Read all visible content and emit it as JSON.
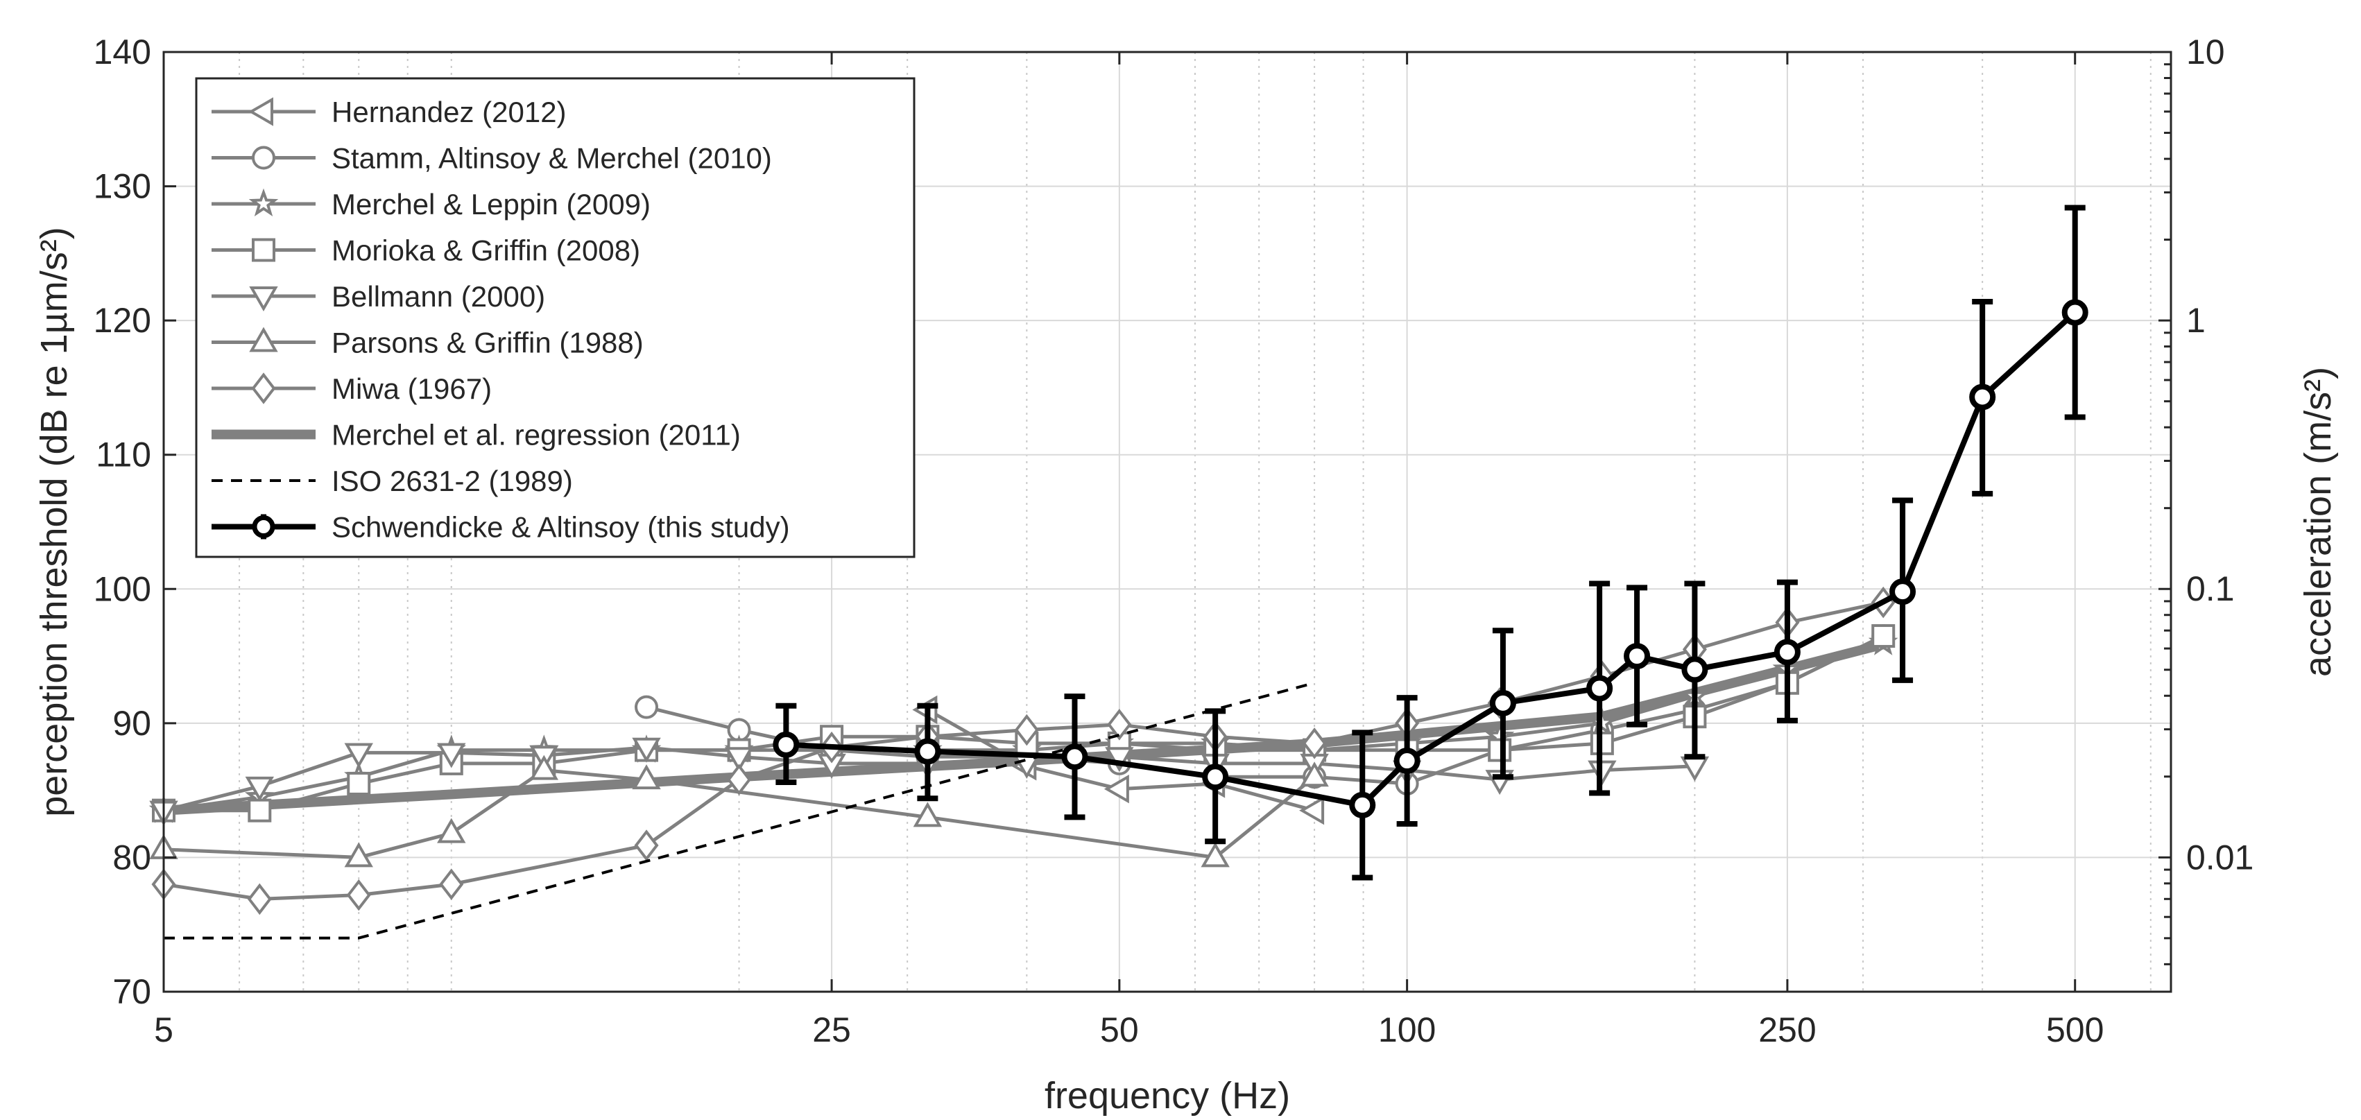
{
  "chart_data": {
    "type": "line",
    "title": "",
    "xlabel": "frequency (Hz)",
    "ylabel": "perception threshold (dB re 1µm/s²)",
    "y2label": "acceleration (m/s²)",
    "xscale": "log",
    "xlim": [
      5,
      630
    ],
    "ylim": [
      70,
      140
    ],
    "x_tick_labels": [
      "5",
      "25",
      "50",
      "100",
      "250",
      "500"
    ],
    "x_tick_values": [
      5,
      25,
      50,
      100,
      250,
      500
    ],
    "y_tick_labels": [
      "70",
      "80",
      "90",
      "100",
      "110",
      "120",
      "130",
      "140"
    ],
    "y_tick_values": [
      70,
      80,
      90,
      100,
      110,
      120,
      130,
      140
    ],
    "y2scale": "log",
    "y2lim": [
      0.00316,
      10
    ],
    "y2_tick_labels": [
      "0.01",
      "0.1",
      "1",
      "10"
    ],
    "y2_tick_values": [
      0.01,
      0.1,
      1,
      10
    ],
    "grid": true,
    "legend_position": "top-left",
    "series": [
      {
        "name": "Hernandez (2012)",
        "marker": "triangle-left",
        "color": "#808080",
        "x": [
          31.5,
          40,
          50,
          63,
          80
        ],
        "values": [
          91,
          86.8,
          85.1,
          85.5,
          83.5
        ]
      },
      {
        "name": "Stamm, Altinsoy & Merchel (2010)",
        "marker": "circle",
        "color": "#808080",
        "x": [
          16,
          20,
          25,
          31.5,
          40,
          50,
          63,
          80,
          100,
          125,
          160,
          200,
          250,
          315
        ],
        "values": [
          91.2,
          89.5,
          88,
          87.5,
          87.5,
          87,
          86,
          86,
          85.5,
          88,
          89.5,
          91,
          93,
          96.5
        ]
      },
      {
        "name": "Merchel & Leppin (2009)",
        "marker": "star",
        "color": "#808080",
        "x": [
          5,
          6.3,
          8,
          10,
          12.5,
          16,
          20,
          25,
          31.5,
          40,
          50,
          63,
          80,
          100,
          125,
          160,
          200,
          250,
          315
        ],
        "values": [
          83.5,
          84.5,
          86,
          88,
          88,
          88,
          88,
          88,
          88,
          88,
          88.5,
          88.5,
          88,
          88.5,
          89,
          90,
          92,
          94,
          96
        ]
      },
      {
        "name": "Morioka & Griffin (2008)",
        "marker": "square",
        "color": "#808080",
        "x": [
          5,
          6.3,
          8,
          10,
          12.5,
          16,
          20,
          25,
          31.5,
          40,
          50,
          63,
          80,
          100,
          125,
          160,
          200,
          250,
          315
        ],
        "values": [
          83.5,
          83.5,
          85.5,
          87,
          87,
          88,
          88,
          89,
          89,
          88.5,
          88.5,
          88,
          88,
          88,
          88,
          88.5,
          90.5,
          93,
          96.5
        ]
      },
      {
        "name": "Bellmann (2000)",
        "marker": "triangle-down",
        "color": "#808080",
        "x": [
          5,
          6.3,
          8,
          10,
          12.5,
          16,
          20,
          25,
          31.5,
          40,
          50,
          63,
          80,
          100,
          125,
          160,
          200
        ],
        "values": [
          83.5,
          85.3,
          87.8,
          87.8,
          87.6,
          88.2,
          87.5,
          87,
          87,
          87,
          87.5,
          87,
          87,
          86.5,
          85.8,
          86.5,
          86.8
        ]
      },
      {
        "name": "Parsons & Griffin (1988)",
        "marker": "triangle-up",
        "color": "#808080",
        "x": [
          5,
          8,
          10,
          12.5,
          16,
          31.5,
          63,
          80
        ],
        "values": [
          80.6,
          80,
          81.8,
          86.5,
          85.8,
          83,
          80,
          86
        ]
      },
      {
        "name": "Miwa (1967)",
        "marker": "diamond",
        "color": "#808080",
        "x": [
          5,
          6.3,
          8,
          10,
          16,
          20,
          25,
          31.5,
          40,
          50,
          63,
          80,
          100,
          125,
          160,
          200,
          250,
          315
        ],
        "values": [
          78,
          76.9,
          77.2,
          78,
          80.9,
          85.8,
          88.2,
          89,
          89.5,
          89.9,
          89,
          88.5,
          90,
          91.5,
          93.5,
          95.5,
          97.5,
          99
        ]
      },
      {
        "name": "Merchel et al. regression (2011)",
        "marker": "none",
        "style": "thick",
        "color": "#808080",
        "x": [
          5,
          10,
          20,
          40,
          80,
          160,
          320
        ],
        "values": [
          83.5,
          84.7,
          86,
          87.2,
          88.5,
          90.5,
          96
        ]
      },
      {
        "name": "ISO 2631-2 (1989)",
        "marker": "none",
        "style": "dashed",
        "color": "#000000",
        "x": [
          5,
          8,
          80
        ],
        "values": [
          74,
          74,
          93
        ]
      },
      {
        "name": "Schwendicke & Altinsoy (this study)",
        "marker": "circle",
        "style": "errorbar",
        "color": "#000000",
        "x": [
          22.4,
          31.5,
          44.9,
          63,
          89.8,
          100,
          126,
          159,
          174,
          200,
          250,
          330,
          400,
          500
        ],
        "values": [
          88.4,
          87.9,
          87.5,
          86,
          83.9,
          87.2,
          91.5,
          92.6,
          95,
          94,
          95.3,
          99.8,
          114.3,
          120.6
        ],
        "error_low": [
          85.6,
          84.4,
          83,
          81.2,
          78.5,
          82.5,
          86,
          84.8,
          89.9,
          87.5,
          90.2,
          93.2,
          107.1,
          112.8
        ],
        "error_high": [
          91.3,
          91.3,
          92,
          90.9,
          89.3,
          91.9,
          96.9,
          100.4,
          100.1,
          100.4,
          100.5,
          106.6,
          121.4,
          128.4
        ]
      }
    ]
  }
}
